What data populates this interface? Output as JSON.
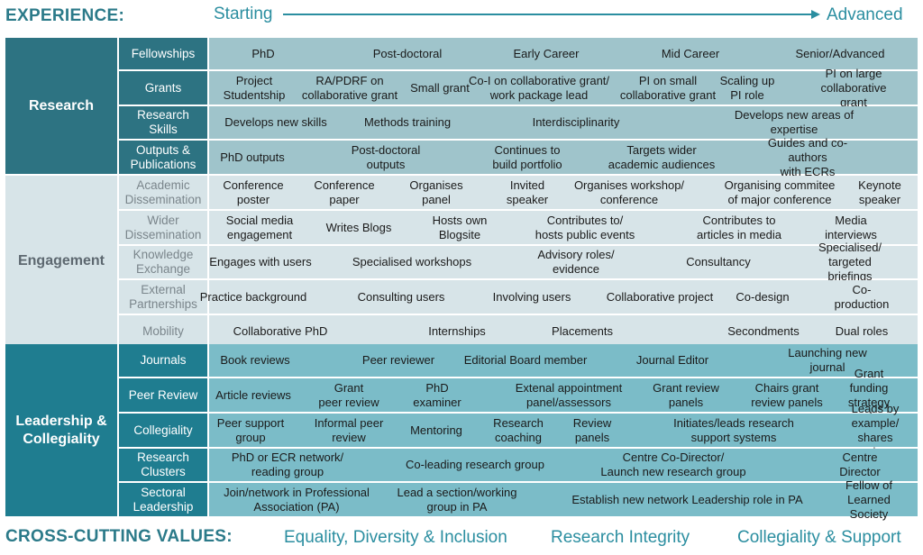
{
  "header": {
    "label": "EXPERIENCE:",
    "start": "Starting",
    "end": "Advanced"
  },
  "footer": {
    "label": "CROSS-CUTTING VALUES:",
    "values": [
      "Equality, Diversity & Inclusion",
      "Research Integrity",
      "Collegiality & Support"
    ]
  },
  "colors": {
    "teal_dark": "#2d7382",
    "teal_mid": "#1f7d90",
    "research_cell": "#9fc4cb",
    "engagement_bg": "#d7e4e8",
    "leadership_cell": "#7bbcc8",
    "header_text": "#2b7a89"
  },
  "sections": [
    {
      "key": "research",
      "title": "Research",
      "rows": [
        {
          "label": "Fellowships",
          "cells": [
            "PhD",
            "Post-doctoral",
            "Early Career",
            "Mid Career",
            "Senior/Advanced"
          ]
        },
        {
          "label": "Grants",
          "cells": [
            "Project\nStudentship",
            "RA/PDRF on\ncollaborative grant",
            "Small grant",
            "Co-I on collaborative grant/\nwork package lead",
            "PI on small\ncollaborative grant",
            "Scaling up\nPI role",
            "PI on large\ncollaborative grant"
          ]
        },
        {
          "label": "Research\nSkills",
          "cells": [
            "Develops new skills",
            "Methods training",
            "Interdisciplinarity",
            "Develops new areas of expertise"
          ]
        },
        {
          "label": "Outputs &\nPublications",
          "cells": [
            "PhD outputs",
            "Post-doctoral\noutputs",
            "Continues to\nbuild portfolio",
            "Targets wider\nacademic audiences",
            "Guides and co-authors\nwith ECRs"
          ]
        }
      ]
    },
    {
      "key": "engagement",
      "title": "Engagement",
      "rows": [
        {
          "label": "Academic\nDissemination",
          "cells": [
            "Conference\nposter",
            "Conference\npaper",
            "Organises\npanel",
            "Invited\nspeaker",
            "Organises workshop/\nconference",
            "Organising commitee\nof major conference",
            "Keynote\nspeaker"
          ]
        },
        {
          "label": "Wider\nDissemination",
          "cells": [
            "Social media\nengagement",
            "Writes Blogs",
            "Hosts own\nBlogsite",
            "Contributes to/\nhosts public events",
            "Contributes to\narticles in media",
            "Media interviews"
          ]
        },
        {
          "label": "Knowledge\nExchange",
          "cells": [
            "Engages with users",
            "Specialised workshops",
            "Advisory roles/\nevidence",
            "Consultancy",
            "Specialised/\ntargeted briefings"
          ]
        },
        {
          "label": "External\nPartnerships",
          "cells": [
            "Practice background",
            "Consulting users",
            "Involving users",
            "Collaborative project",
            "Co-design",
            "Co-production"
          ]
        },
        {
          "label": "Mobility",
          "cells": [
            "Collaborative PhD",
            "Internships",
            "Placements",
            "Secondments",
            "Dual roles"
          ]
        }
      ]
    },
    {
      "key": "leadership",
      "title": "Leadership &\nCollegiality",
      "rows": [
        {
          "label": "Journals",
          "cells": [
            "Book reviews",
            "Peer reviewer",
            "Editorial Board member",
            "Journal Editor",
            "Launching new journal"
          ]
        },
        {
          "label": "Peer Review",
          "cells": [
            "Article reviews",
            "Grant\npeer review",
            "PhD\nexaminer",
            "Extenal appointment\npanel/assessors",
            "Grant review\npanels",
            "Chairs grant\nreview panels",
            "Grant funding\nstrategy role"
          ]
        },
        {
          "label": "Collegiality",
          "cells": [
            "Peer support\ngroup",
            "Informal peer\nreview",
            "Mentoring",
            "Research\ncoaching",
            "Review\npanels",
            "Initiates/leads research\nsupport systems",
            "Leads by example/\nshares experiences"
          ]
        },
        {
          "label": "Research\nClusters",
          "cells": [
            "PhD or ECR network/\nreading group",
            "Co-leading research group",
            "Centre Co-Director/\nLaunch new research group",
            "Centre Director"
          ]
        },
        {
          "label": "Sectoral\nLeadership",
          "cells": [
            "Join/network in Professional\nAssociation (PA)",
            "Lead a section/working\ngroup in PA",
            "Establish new network",
            "Leadership role in PA",
            "Fellow of\nLearned Society"
          ]
        }
      ]
    }
  ]
}
